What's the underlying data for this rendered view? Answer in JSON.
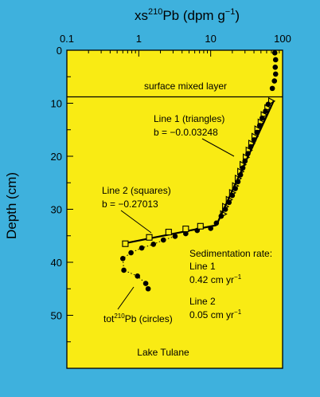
{
  "chart_data": {
    "type": "scatter",
    "title": "",
    "top_axis_label": "xs²¹⁰Pb (dpm g⁻¹)",
    "top_axis_label_parts": {
      "base": "xs",
      "sup": "210",
      "rest": "Pb (dpm g",
      "sup2": "−1",
      "close": ")"
    },
    "ylabel": "Depth (cm)",
    "x_scale": "log",
    "xlim": [
      0.1,
      100
    ],
    "ylim": [
      0,
      60
    ],
    "y_reversed": true,
    "x_ticks": [
      "0.1",
      "1",
      "10",
      "100"
    ],
    "x_tick_values": [
      0.1,
      1,
      10,
      100
    ],
    "y_ticks": [
      "0",
      "10",
      "20",
      "30",
      "40",
      "50"
    ],
    "y_tick_values": [
      0,
      10,
      20,
      30,
      40,
      50
    ],
    "colors": {
      "background": "#3eb1dd",
      "plot_area": "#f9eb14",
      "ink": "#000000"
    },
    "surface_mixed_layer": {
      "depth": 8.8,
      "label": "surface mixed layer"
    },
    "series": [
      {
        "name": "circles",
        "marker": "circle",
        "points": [
          [
            78,
            0.5
          ],
          [
            80,
            1.8
          ],
          [
            79,
            3.2
          ],
          [
            80,
            4.5
          ],
          [
            77,
            5.8
          ],
          [
            72,
            7.2
          ],
          [
            63,
            10.2
          ],
          [
            58,
            11.5
          ],
          [
            52,
            12.8
          ],
          [
            48,
            14.2
          ],
          [
            44,
            15.5
          ],
          [
            40,
            16.9
          ],
          [
            36,
            18.2
          ],
          [
            33,
            19.5
          ],
          [
            30,
            20.9
          ],
          [
            28,
            22.2
          ],
          [
            26,
            23.5
          ],
          [
            24,
            24.8
          ],
          [
            22,
            26.1
          ],
          [
            20,
            27.4
          ],
          [
            18,
            28.7
          ],
          [
            16,
            30.0
          ],
          [
            14,
            31.3
          ],
          [
            12,
            32.6
          ],
          [
            10,
            33.6
          ],
          [
            6.5,
            34.0
          ],
          [
            4.5,
            34.6
          ],
          [
            3.2,
            35.1
          ],
          [
            2.2,
            35.8
          ],
          [
            1.6,
            36.6
          ],
          [
            1.1,
            37.3
          ],
          [
            0.78,
            38.2
          ],
          [
            0.6,
            39.3
          ],
          [
            0.62,
            41.5
          ],
          [
            0.96,
            42.6
          ],
          [
            1.25,
            44.0
          ],
          [
            1.35,
            45.0
          ]
        ]
      },
      {
        "name": "triangles",
        "marker": "triangle",
        "points": [
          [
            70,
            9.6
          ],
          [
            62,
            10.9
          ],
          [
            55,
            12.2
          ],
          [
            50,
            13.6
          ],
          [
            45,
            14.9
          ],
          [
            41,
            16.3
          ],
          [
            37,
            17.6
          ],
          [
            34,
            18.9
          ],
          [
            31,
            20.2
          ],
          [
            28,
            21.6
          ],
          [
            26,
            22.9
          ],
          [
            24,
            24.2
          ],
          [
            22,
            25.6
          ],
          [
            20,
            26.9
          ],
          [
            18,
            28.2
          ],
          [
            16,
            29.5
          ],
          [
            15,
            30.9
          ]
        ]
      },
      {
        "name": "squares",
        "marker": "square",
        "points": [
          [
            0.65,
            36.5
          ],
          [
            1.4,
            35.3
          ],
          [
            2.6,
            34.3
          ],
          [
            4.5,
            33.7
          ],
          [
            7.2,
            33.2
          ]
        ]
      }
    ],
    "fit_lines": [
      {
        "name": "Line 1",
        "points": [
          [
            75,
            9.6
          ],
          [
            12,
            33.0
          ]
        ]
      },
      {
        "name": "Line 2",
        "points": [
          [
            12,
            33.0
          ],
          [
            0.65,
            36.4
          ]
        ]
      }
    ],
    "annotations": {
      "line1_title": "Line 1 (triangles)",
      "line1_eq": "b = −0.0.03248",
      "line2_title": "Line 2 (squares)",
      "line2_eq": "b = −0.27013",
      "circles_label_pre": "tot",
      "circles_label_sup": "210",
      "circles_label_post": "Pb (circles)",
      "sed_title": "Sedimentation rate:",
      "sed_line1": "Line 1",
      "sed_line1_val": "0.42 cm yr",
      "sed_line2": "Line 2",
      "sed_line2_val": "0.05 cm yr",
      "sed_unit_sup": "−1",
      "site": "Lake Tulane"
    }
  }
}
